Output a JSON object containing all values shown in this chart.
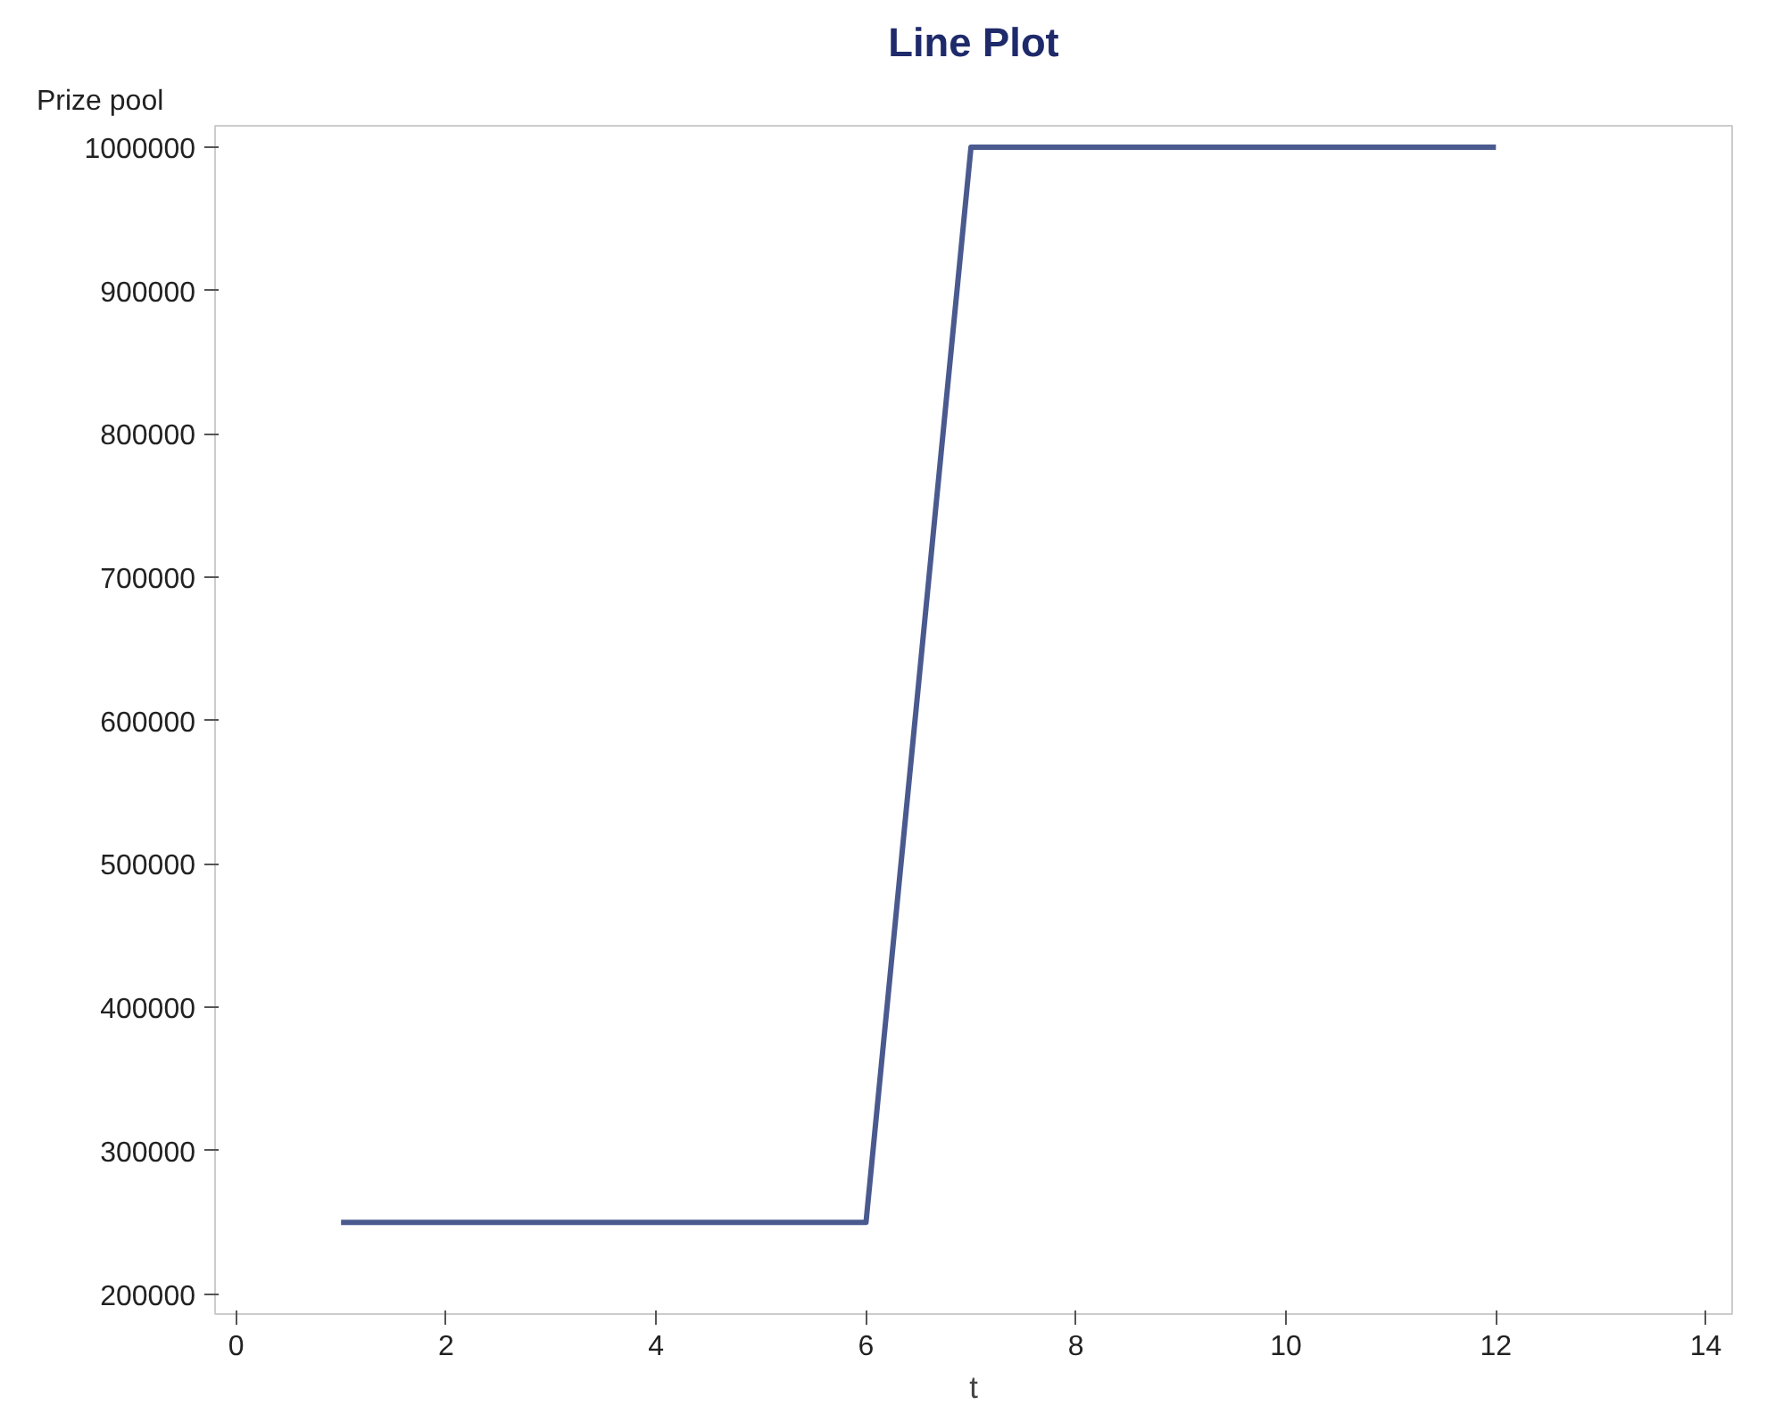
{
  "chart_data": {
    "type": "line",
    "title": "Line Plot",
    "xlabel": "t",
    "ylabel": "Prize pool",
    "x": [
      1,
      2,
      3,
      4,
      5,
      6,
      7,
      8,
      9,
      10,
      11,
      12
    ],
    "series": [
      {
        "color": "#4a5a8f",
        "values": [
          250000,
          250000,
          250000,
          250000,
          250000,
          250000,
          1000000,
          1000000,
          1000000,
          1000000,
          1000000,
          1000000
        ]
      }
    ],
    "xlim": [
      -0.2,
      14.25
    ],
    "xticks": [
      0,
      2,
      4,
      6,
      8,
      10,
      12,
      14
    ],
    "ylim": [
      186000,
      1015000
    ],
    "yticks": [
      200000,
      300000,
      400000,
      500000,
      600000,
      700000,
      800000,
      900000,
      1000000
    ],
    "grid": false,
    "marker": "none",
    "line_style": "solid"
  }
}
